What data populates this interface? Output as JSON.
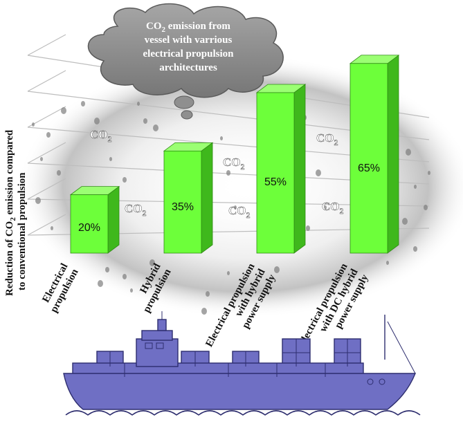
{
  "chart_data": {
    "type": "bar",
    "title_lines": [
      "CO2 emission from",
      "vessel with varrious",
      "electrical propulsion",
      "architectures"
    ],
    "ylabel_lines": [
      "Reduction of CO2 emission compared",
      "to conventional propulsion"
    ],
    "categories": [
      [
        "Electrical",
        "propulsion"
      ],
      [
        "Hybrid",
        "propulsion"
      ],
      [
        "Electrical propulsion",
        "with hybrid",
        "power supply"
      ],
      [
        "Electrical propulsion",
        "with DC hybrid",
        "power supply"
      ]
    ],
    "values": [
      20,
      35,
      55,
      65
    ],
    "value_labels": [
      "20%",
      "35%",
      "55%",
      "65%"
    ],
    "ylim": [
      0,
      80
    ],
    "grid": true,
    "co2_label": "CO2",
    "colors": {
      "bar_front": "#6dff3a",
      "bar_side": "#3fb81c",
      "bar_top": "#9bff73",
      "cloud": "#8c8c8c",
      "ship": "#6f6fc4",
      "ship_outline": "#2d2d6e"
    }
  }
}
